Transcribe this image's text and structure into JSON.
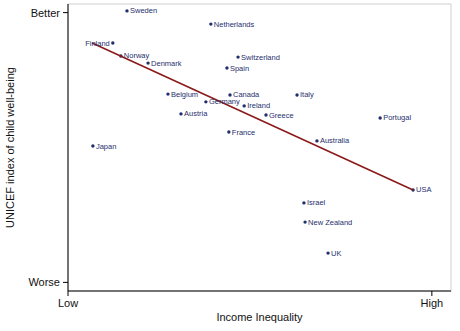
{
  "chart_data": {
    "type": "scatter",
    "x_label": "Income Inequality",
    "y_label": "UNICEF index of child well-being",
    "xlim": [
      0,
      100
    ],
    "ylim": [
      0,
      100
    ],
    "xticks": [
      {
        "value": 0,
        "label": "Low"
      },
      {
        "value": 95,
        "label": "High"
      }
    ],
    "yticks": [
      {
        "value": 3,
        "label": "Worse"
      },
      {
        "value": 97,
        "label": "Better"
      }
    ],
    "grid": false,
    "series": [
      {
        "type": "scatter",
        "color": "#1f2f6e",
        "marker": "circle",
        "labels": [
          "Sweden",
          "Netherlands",
          "Finland",
          "Norway",
          "Denmark",
          "Switzerland",
          "Spain",
          "Belgium",
          "Germany",
          "Austria",
          "Canada",
          "Ireland",
          "Italy",
          "Greece",
          "Portugal",
          "Japan",
          "France",
          "Australia",
          "USA",
          "Israel",
          "New Zealand",
          "UK"
        ],
        "x": [
          15.4,
          37.3,
          11.7,
          13.8,
          20.9,
          44.4,
          41.5,
          26.1,
          36.0,
          29.5,
          42.3,
          46.0,
          59.8,
          51.7,
          81.5,
          6.5,
          42.0,
          65.0,
          90.1,
          61.6,
          61.9,
          67.9
        ],
        "values": [
          97.6,
          93.0,
          86.4,
          81.9,
          79.4,
          81.5,
          77.7,
          68.6,
          65.9,
          61.7,
          68.3,
          64.5,
          68.3,
          61.3,
          60.3,
          50.5,
          55.4,
          52.3,
          35.2,
          30.7,
          24.0,
          13.2
        ]
      },
      {
        "type": "line",
        "color": "#8b1a1a",
        "line_style": "solid",
        "x": [
          6.3,
          90.1
        ],
        "values": [
          86.4,
          35.2
        ]
      }
    ]
  }
}
